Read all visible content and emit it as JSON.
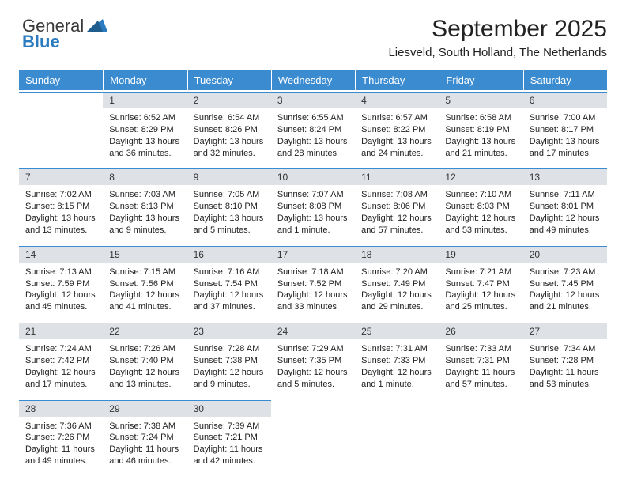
{
  "logo": {
    "word1": "General",
    "word2": "Blue"
  },
  "title": "September 2025",
  "subtitle": "Liesveld, South Holland, The Netherlands",
  "styling": {
    "header_bg": "#3b8bd0",
    "header_text": "#ffffff",
    "daynum_bg": "#dee2e6",
    "daynum_border_top": "#3b8bd0",
    "page_bg": "#ffffff",
    "title_fontsize": 30,
    "subtitle_fontsize": 15,
    "dayhead_fontsize": 13,
    "daynum_fontsize": 12,
    "cell_fontsize": 11
  },
  "days": [
    "Sunday",
    "Monday",
    "Tuesday",
    "Wednesday",
    "Thursday",
    "Friday",
    "Saturday"
  ],
  "weeks": [
    [
      null,
      {
        "n": "1",
        "sr": "Sunrise: 6:52 AM",
        "ss": "Sunset: 8:29 PM",
        "dl": "Daylight: 13 hours and 36 minutes."
      },
      {
        "n": "2",
        "sr": "Sunrise: 6:54 AM",
        "ss": "Sunset: 8:26 PM",
        "dl": "Daylight: 13 hours and 32 minutes."
      },
      {
        "n": "3",
        "sr": "Sunrise: 6:55 AM",
        "ss": "Sunset: 8:24 PM",
        "dl": "Daylight: 13 hours and 28 minutes."
      },
      {
        "n": "4",
        "sr": "Sunrise: 6:57 AM",
        "ss": "Sunset: 8:22 PM",
        "dl": "Daylight: 13 hours and 24 minutes."
      },
      {
        "n": "5",
        "sr": "Sunrise: 6:58 AM",
        "ss": "Sunset: 8:19 PM",
        "dl": "Daylight: 13 hours and 21 minutes."
      },
      {
        "n": "6",
        "sr": "Sunrise: 7:00 AM",
        "ss": "Sunset: 8:17 PM",
        "dl": "Daylight: 13 hours and 17 minutes."
      }
    ],
    [
      {
        "n": "7",
        "sr": "Sunrise: 7:02 AM",
        "ss": "Sunset: 8:15 PM",
        "dl": "Daylight: 13 hours and 13 minutes."
      },
      {
        "n": "8",
        "sr": "Sunrise: 7:03 AM",
        "ss": "Sunset: 8:13 PM",
        "dl": "Daylight: 13 hours and 9 minutes."
      },
      {
        "n": "9",
        "sr": "Sunrise: 7:05 AM",
        "ss": "Sunset: 8:10 PM",
        "dl": "Daylight: 13 hours and 5 minutes."
      },
      {
        "n": "10",
        "sr": "Sunrise: 7:07 AM",
        "ss": "Sunset: 8:08 PM",
        "dl": "Daylight: 13 hours and 1 minute."
      },
      {
        "n": "11",
        "sr": "Sunrise: 7:08 AM",
        "ss": "Sunset: 8:06 PM",
        "dl": "Daylight: 12 hours and 57 minutes."
      },
      {
        "n": "12",
        "sr": "Sunrise: 7:10 AM",
        "ss": "Sunset: 8:03 PM",
        "dl": "Daylight: 12 hours and 53 minutes."
      },
      {
        "n": "13",
        "sr": "Sunrise: 7:11 AM",
        "ss": "Sunset: 8:01 PM",
        "dl": "Daylight: 12 hours and 49 minutes."
      }
    ],
    [
      {
        "n": "14",
        "sr": "Sunrise: 7:13 AM",
        "ss": "Sunset: 7:59 PM",
        "dl": "Daylight: 12 hours and 45 minutes."
      },
      {
        "n": "15",
        "sr": "Sunrise: 7:15 AM",
        "ss": "Sunset: 7:56 PM",
        "dl": "Daylight: 12 hours and 41 minutes."
      },
      {
        "n": "16",
        "sr": "Sunrise: 7:16 AM",
        "ss": "Sunset: 7:54 PM",
        "dl": "Daylight: 12 hours and 37 minutes."
      },
      {
        "n": "17",
        "sr": "Sunrise: 7:18 AM",
        "ss": "Sunset: 7:52 PM",
        "dl": "Daylight: 12 hours and 33 minutes."
      },
      {
        "n": "18",
        "sr": "Sunrise: 7:20 AM",
        "ss": "Sunset: 7:49 PM",
        "dl": "Daylight: 12 hours and 29 minutes."
      },
      {
        "n": "19",
        "sr": "Sunrise: 7:21 AM",
        "ss": "Sunset: 7:47 PM",
        "dl": "Daylight: 12 hours and 25 minutes."
      },
      {
        "n": "20",
        "sr": "Sunrise: 7:23 AM",
        "ss": "Sunset: 7:45 PM",
        "dl": "Daylight: 12 hours and 21 minutes."
      }
    ],
    [
      {
        "n": "21",
        "sr": "Sunrise: 7:24 AM",
        "ss": "Sunset: 7:42 PM",
        "dl": "Daylight: 12 hours and 17 minutes."
      },
      {
        "n": "22",
        "sr": "Sunrise: 7:26 AM",
        "ss": "Sunset: 7:40 PM",
        "dl": "Daylight: 12 hours and 13 minutes."
      },
      {
        "n": "23",
        "sr": "Sunrise: 7:28 AM",
        "ss": "Sunset: 7:38 PM",
        "dl": "Daylight: 12 hours and 9 minutes."
      },
      {
        "n": "24",
        "sr": "Sunrise: 7:29 AM",
        "ss": "Sunset: 7:35 PM",
        "dl": "Daylight: 12 hours and 5 minutes."
      },
      {
        "n": "25",
        "sr": "Sunrise: 7:31 AM",
        "ss": "Sunset: 7:33 PM",
        "dl": "Daylight: 12 hours and 1 minute."
      },
      {
        "n": "26",
        "sr": "Sunrise: 7:33 AM",
        "ss": "Sunset: 7:31 PM",
        "dl": "Daylight: 11 hours and 57 minutes."
      },
      {
        "n": "27",
        "sr": "Sunrise: 7:34 AM",
        "ss": "Sunset: 7:28 PM",
        "dl": "Daylight: 11 hours and 53 minutes."
      }
    ],
    [
      {
        "n": "28",
        "sr": "Sunrise: 7:36 AM",
        "ss": "Sunset: 7:26 PM",
        "dl": "Daylight: 11 hours and 49 minutes."
      },
      {
        "n": "29",
        "sr": "Sunrise: 7:38 AM",
        "ss": "Sunset: 7:24 PM",
        "dl": "Daylight: 11 hours and 46 minutes."
      },
      {
        "n": "30",
        "sr": "Sunrise: 7:39 AM",
        "ss": "Sunset: 7:21 PM",
        "dl": "Daylight: 11 hours and 42 minutes."
      },
      null,
      null,
      null,
      null
    ]
  ]
}
